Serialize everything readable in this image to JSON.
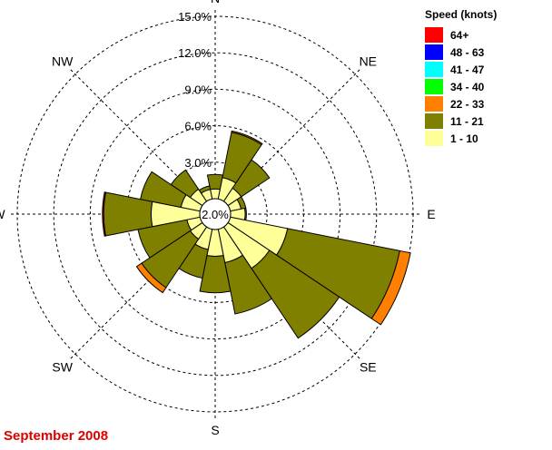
{
  "chart_data": {
    "type": "wind-rose",
    "title": "September 2008",
    "legend": {
      "title": "Speed (knots)",
      "placement": "top-right",
      "entries": [
        {
          "label": "64+",
          "color": "#ff0000"
        },
        {
          "label": "48 - 63",
          "color": "#0000ff"
        },
        {
          "label": "41 - 47",
          "color": "#00ffff"
        },
        {
          "label": "34 - 40",
          "color": "#00ff00"
        },
        {
          "label": "22 - 33",
          "color": "#ff8000"
        },
        {
          "label": "11 - 21",
          "color": "#808000"
        },
        {
          "label": "1 - 10",
          "color": "#ffff99"
        }
      ]
    },
    "compass": [
      "N",
      "NE",
      "E",
      "SE",
      "S",
      "SW",
      "W",
      "NW"
    ],
    "ring_labels": [
      "3.0%",
      "6.0%",
      "9.0%",
      "12.0%",
      "15.0%"
    ],
    "ring_values": [
      3,
      6,
      9,
      12,
      15
    ],
    "calm_label": "2.0%",
    "calm_percent": 2.0,
    "sector_directions_deg": [
      0,
      22.5,
      45,
      67.5,
      90,
      112.5,
      135,
      157.5,
      180,
      202.5,
      225,
      247.5,
      270,
      292.5,
      315,
      337.5
    ],
    "series": [
      {
        "name": "1 - 10",
        "values": [
          0.8,
          1.8,
          1.3,
          0.9,
          1.2,
          4.8,
          4.1,
          2.8,
          2.2,
          1.7,
          1.2,
          1.1,
          4.0,
          1.6,
          1.2,
          0.8
        ]
      },
      {
        "name": "11 - 21",
        "values": [
          1.2,
          3.8,
          2.8,
          0.4,
          0.1,
          9.4,
          6.9,
          4.3,
          3.0,
          2.4,
          4.8,
          4.1,
          3.9,
          3.4,
          1.9,
          0.3
        ]
      },
      {
        "name": "22 - 33",
        "values": [
          0.0,
          0.1,
          0.0,
          0.0,
          0.0,
          0.9,
          0.0,
          0.0,
          0.0,
          0.0,
          0.5,
          0.0,
          0.0,
          0.0,
          0.0,
          0.0
        ]
      },
      {
        "name": "34 - 40",
        "values": [
          0,
          0,
          0,
          0,
          0,
          0,
          0,
          0,
          0,
          0,
          0,
          0,
          0,
          0,
          0,
          0
        ]
      },
      {
        "name": "41 - 47",
        "values": [
          0,
          0,
          0,
          0,
          0,
          0,
          0,
          0,
          0,
          0,
          0,
          0,
          0,
          0,
          0,
          0
        ]
      },
      {
        "name": "48 - 63",
        "values": [
          0,
          0,
          0,
          0,
          0,
          0,
          0,
          0,
          0,
          0,
          0,
          0,
          0,
          0,
          0,
          0
        ]
      },
      {
        "name": "64+",
        "values": [
          0.0,
          0.0,
          0.0,
          0.0,
          0.0,
          0.0,
          0.0,
          0.0,
          0.0,
          0.0,
          0.0,
          0.0,
          0.1,
          0.0,
          0.0,
          0.0
        ]
      }
    ]
  }
}
